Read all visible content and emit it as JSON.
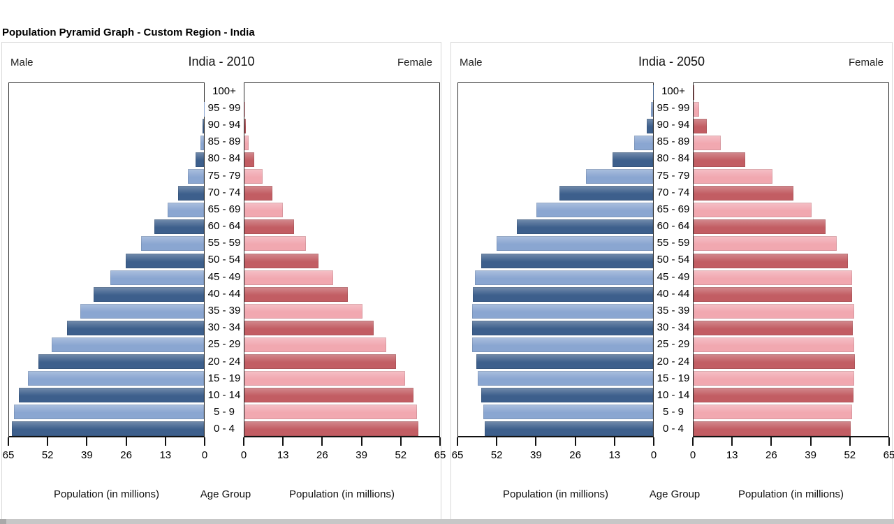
{
  "page": {
    "title": "Population Pyramid Graph - Custom Region - India",
    "colors": {
      "male_dark": "#3d5f8c",
      "male_light": "#8aa6d1",
      "female_dark": "#c25d63",
      "female_light": "#f1a8b0",
      "axis": "#111111",
      "card_border": "#d8d8d8",
      "bottom_strip": "#c7c7c7"
    }
  },
  "charts": [
    {
      "title": "India - 2010",
      "male_label": "Male",
      "female_label": "Female",
      "age_axis_label": "Age Group",
      "population_axis_label": "Population (in millions)"
    },
    {
      "title": "India - 2050",
      "male_label": "Male",
      "female_label": "Female",
      "age_axis_label": "Age Group",
      "population_axis_label": "Population (in millions)"
    }
  ],
  "chart_data": [
    {
      "type": "bar",
      "subtype": "population-pyramid",
      "title": "India - 2010",
      "unit": "millions",
      "age_groups": [
        "0 - 4",
        "5 - 9",
        "10 - 14",
        "15 - 19",
        "20 - 24",
        "25 - 29",
        "30 - 34",
        "35 - 39",
        "40 - 44",
        "45 - 49",
        "50 - 54",
        "55 - 59",
        "60 - 64",
        "65 - 69",
        "70 - 74",
        "75 - 79",
        "80 - 84",
        "85 - 89",
        "90 - 94",
        "95 - 99",
        "100+"
      ],
      "series": [
        {
          "name": "Male",
          "values": [
            64.0,
            63.3,
            61.8,
            58.8,
            55.2,
            50.9,
            45.6,
            41.3,
            36.7,
            31.3,
            26.1,
            21.0,
            16.5,
            12.1,
            8.6,
            5.4,
            2.9,
            1.2,
            0.4,
            0.1,
            0.0
          ]
        },
        {
          "name": "Female",
          "values": [
            57.9,
            57.6,
            56.3,
            53.6,
            50.5,
            47.3,
            43.1,
            39.4,
            34.4,
            29.6,
            24.7,
            20.5,
            16.5,
            12.7,
            9.4,
            6.0,
            3.3,
            1.4,
            0.5,
            0.1,
            0.0
          ]
        }
      ],
      "xlim": [
        0,
        65
      ],
      "xticks": [
        0,
        13,
        26,
        39,
        52,
        65
      ],
      "xlabel": "Population (in millions)",
      "ylabel": "Age Group",
      "grid": false,
      "legend": false
    },
    {
      "type": "bar",
      "subtype": "population-pyramid",
      "title": "India - 2050",
      "unit": "millions",
      "age_groups": [
        "0 - 4",
        "5 - 9",
        "10 - 14",
        "15 - 19",
        "20 - 24",
        "25 - 29",
        "30 - 34",
        "35 - 39",
        "40 - 44",
        "45 - 49",
        "50 - 54",
        "55 - 59",
        "60 - 64",
        "65 - 69",
        "70 - 74",
        "75 - 79",
        "80 - 84",
        "85 - 89",
        "90 - 94",
        "95 - 99",
        "100+"
      ],
      "series": [
        {
          "name": "Male",
          "values": [
            56.2,
            56.6,
            57.3,
            58.5,
            59.0,
            60.4,
            60.4,
            60.4,
            60.1,
            59.4,
            57.3,
            52.2,
            45.5,
            38.9,
            31.2,
            22.4,
            13.5,
            6.3,
            2.1,
            0.7,
            0.1
          ]
        },
        {
          "name": "Female",
          "values": [
            52.5,
            53.0,
            53.4,
            53.7,
            53.9,
            53.5,
            53.2,
            53.5,
            53.0,
            52.8,
            51.5,
            47.7,
            44.0,
            39.4,
            33.4,
            26.3,
            17.3,
            9.0,
            4.4,
            1.8,
            0.3
          ]
        }
      ],
      "xlim": [
        0,
        65
      ],
      "xticks": [
        0,
        13,
        26,
        39,
        52,
        65
      ],
      "xlabel": "Population (in millions)",
      "ylabel": "Age Group",
      "grid": false,
      "legend": false
    }
  ]
}
